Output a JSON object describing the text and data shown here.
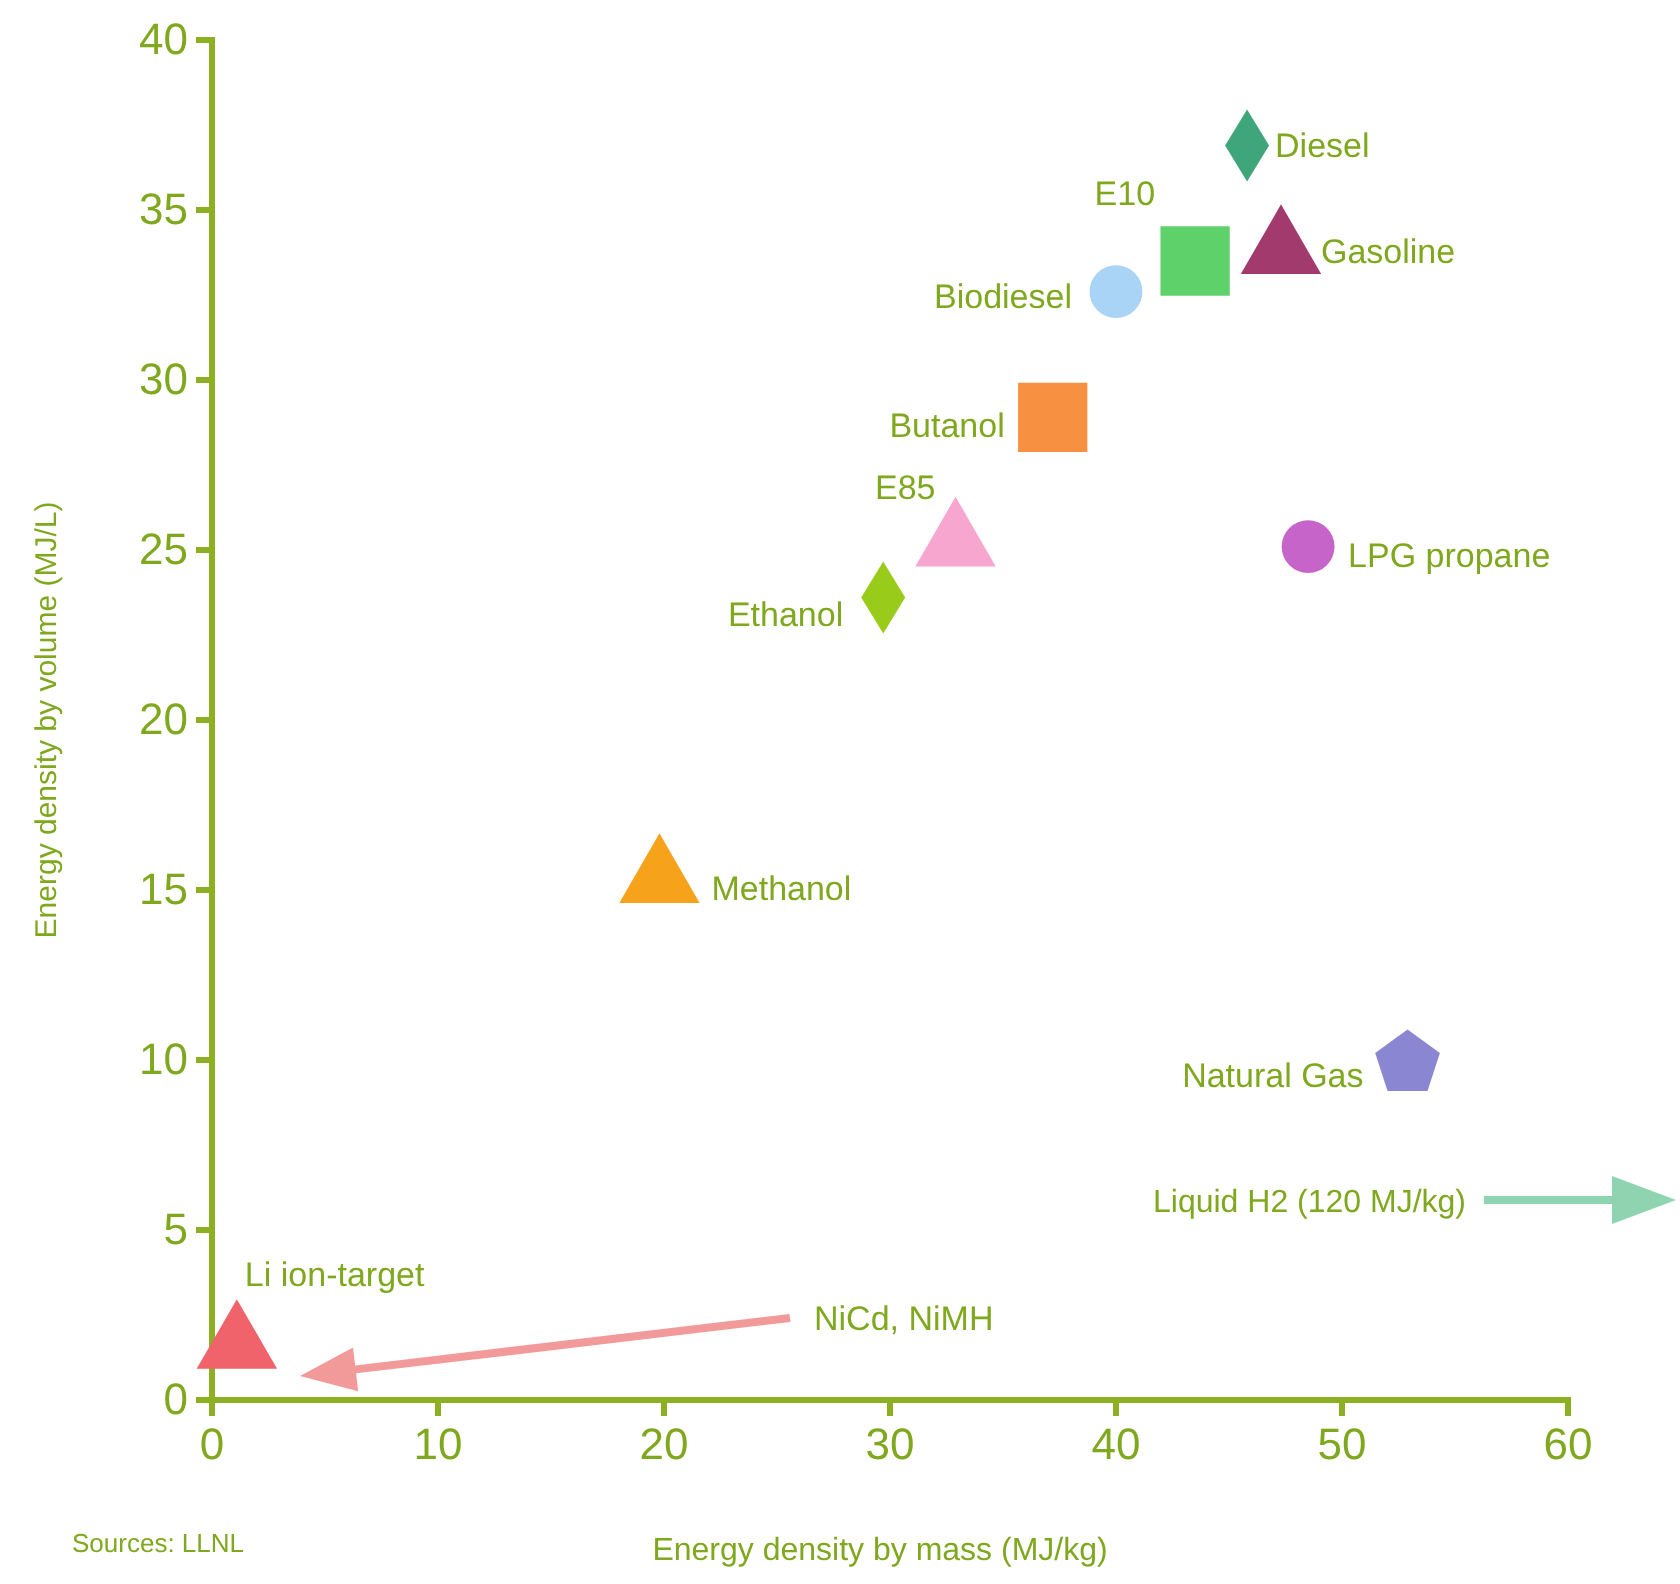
{
  "chart_data": {
    "type": "scatter",
    "xlabel": "Energy density by mass (MJ/kg)",
    "ylabel": "Energy density by volume (MJ/L)",
    "xlim": [
      0,
      60
    ],
    "xticks": [
      0,
      10,
      20,
      30,
      40,
      50,
      60
    ],
    "ylim": [
      0,
      40
    ],
    "yticks": [
      0,
      5,
      10,
      15,
      20,
      25,
      30,
      35,
      40
    ],
    "grid": false,
    "series": [
      {
        "name": "Diesel",
        "color": "#3fa57a",
        "marker": "diamond",
        "x": [
          45.8
        ],
        "values": [
          36.9
        ]
      },
      {
        "name": "E10",
        "color": "#5ed16b",
        "marker": "square",
        "x": [
          43.5
        ],
        "values": [
          33.5
        ]
      },
      {
        "name": "Gasoline",
        "color": "#a23a6e",
        "marker": "triangle",
        "x": [
          47.3
        ],
        "values": [
          33.8
        ]
      },
      {
        "name": "Biodiesel",
        "color": "#a9d4f5",
        "marker": "circle",
        "x": [
          40.0
        ],
        "values": [
          32.6
        ]
      },
      {
        "name": "Butanol",
        "color": "#f79040",
        "marker": "square",
        "x": [
          37.2
        ],
        "values": [
          28.9
        ]
      },
      {
        "name": "E85",
        "color": "#f7a6cf",
        "marker": "triangle",
        "x": [
          32.9
        ],
        "values": [
          25.2
        ]
      },
      {
        "name": "Ethanol",
        "color": "#99cc1a",
        "marker": "diamond",
        "x": [
          29.7
        ],
        "values": [
          23.6
        ]
      },
      {
        "name": "LPG propane",
        "color": "#c764c9",
        "marker": "circle",
        "x": [
          48.5
        ],
        "values": [
          25.1
        ]
      },
      {
        "name": "Methanol",
        "color": "#f7a21b",
        "marker": "triangle",
        "x": [
          19.8
        ],
        "values": [
          15.3
        ]
      },
      {
        "name": "Natural Gas",
        "color": "#8a86d1",
        "x": [
          52.9
        ],
        "values": [
          9.9
        ]
      },
      {
        "name": "Li ion-target",
        "color": "#f0636a",
        "marker": "triangle",
        "x": [
          1.1
        ],
        "values": [
          1.6
        ]
      }
    ],
    "annotations": [
      "Liquid H2 (120 MJ/kg)",
      "NiCd, NiMH",
      "Sources: LLNL"
    ]
  }
}
